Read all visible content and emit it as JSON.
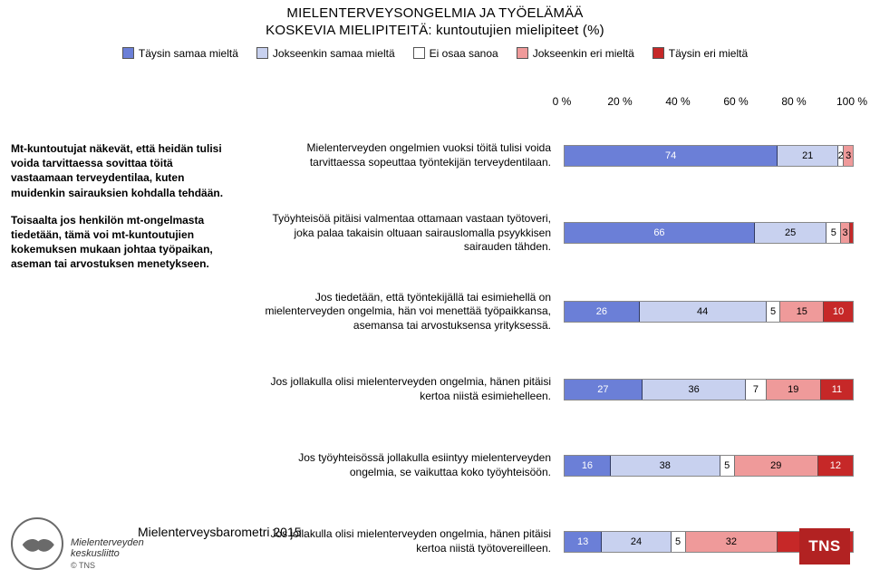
{
  "title": {
    "line1": "MIELENTERVEYSONGELMIA JA TYÖELÄMÄÄ",
    "line2": "KOSKEVIA MIELIPITEITÄ: kuntoutujien mielipiteet (%)"
  },
  "legend": {
    "items": [
      {
        "label": "Täysin samaa mieltä",
        "color": "#6b7fd7"
      },
      {
        "label": "Jokseenkin samaa mieltä",
        "color": "#c8d1ef"
      },
      {
        "label": "Ei osaa sanoa",
        "color": "#ffffff"
      },
      {
        "label": "Jokseenkin eri mieltä",
        "color": "#ef9a9a"
      },
      {
        "label": "Täysin eri mieltä",
        "color": "#c62828"
      }
    ]
  },
  "axis": {
    "ticks": [
      "0 %",
      "20 %",
      "40 %",
      "60 %",
      "80 %",
      "100 %"
    ]
  },
  "leftColumn": {
    "para1_intro": "Mt-kuntoutujat näkevät, että heidän tulisi voida tarvittaessa sovittaa töitä vastaamaan terveydentilaa, kuten muidenkin sairauksien kohdalla tehdään.",
    "para2_intro": "Toisaalta jos henkilön mt-ongelmasta tiedetään, tämä voi mt-kuntoutujien kokemuksen mukaan johtaa työpaikan, aseman tai arvostuksen menetykseen."
  },
  "rows": [
    {
      "label": "Mielenterveyden ongelmien vuoksi töitä tulisi voida tarvittaessa sopeuttaa työntekijän terveydentilaan.",
      "values": [
        74,
        21,
        2,
        3,
        0
      ],
      "show": [
        "74",
        "21",
        "2",
        "3",
        ""
      ]
    },
    {
      "label": "Työyhteisöä pitäisi valmentaa ottamaan vastaan työtoveri, joka palaa takaisin oltuaan sairauslomalla psyykkisen sairauden tähden.",
      "values": [
        66,
        25,
        5,
        3,
        1
      ],
      "show": [
        "66",
        "25",
        "5",
        "3",
        ""
      ]
    },
    {
      "label": "Jos tiedetään, että työntekijällä tai esimiehellä on mielenterveyden ongelmia, hän voi menettää työpaikkansa, asemansa tai arvostuksensa yrityksessä.",
      "values": [
        26,
        44,
        5,
        15,
        10
      ],
      "show": [
        "26",
        "44",
        "5",
        "15",
        "10"
      ]
    },
    {
      "label": "Jos jollakulla olisi mielenterveyden ongelmia, hänen pitäisi kertoa niistä esimiehelleen.",
      "values": [
        27,
        36,
        7,
        19,
        11
      ],
      "show": [
        "27",
        "36",
        "7",
        "19",
        "11"
      ]
    },
    {
      "label": "Jos työyhteisössä jollakulla esiintyy mielenterveyden ongelmia, se vaikuttaa koko työyhteisöön.",
      "values": [
        16,
        38,
        5,
        29,
        12
      ],
      "show": [
        "16",
        "38",
        "5",
        "29",
        "12"
      ]
    },
    {
      "label": "Jos jollakulla olisi mielenterveyden ongelmia, hänen pitäisi kertoa niistä työtovereilleen.",
      "values": [
        13,
        24,
        5,
        32,
        26
      ],
      "show": [
        "13",
        "24",
        "5",
        "32",
        "26"
      ]
    }
  ],
  "footer": {
    "barometri": "Mielenterveysbarometri 2015",
    "org_line1": "Mielenterveyden",
    "org_line2": "keskusliitto",
    "copyright": "© TNS",
    "tns": "TNS"
  },
  "style": {
    "seg_text_dark": "#000000",
    "seg_text_light": "#ffffff"
  }
}
